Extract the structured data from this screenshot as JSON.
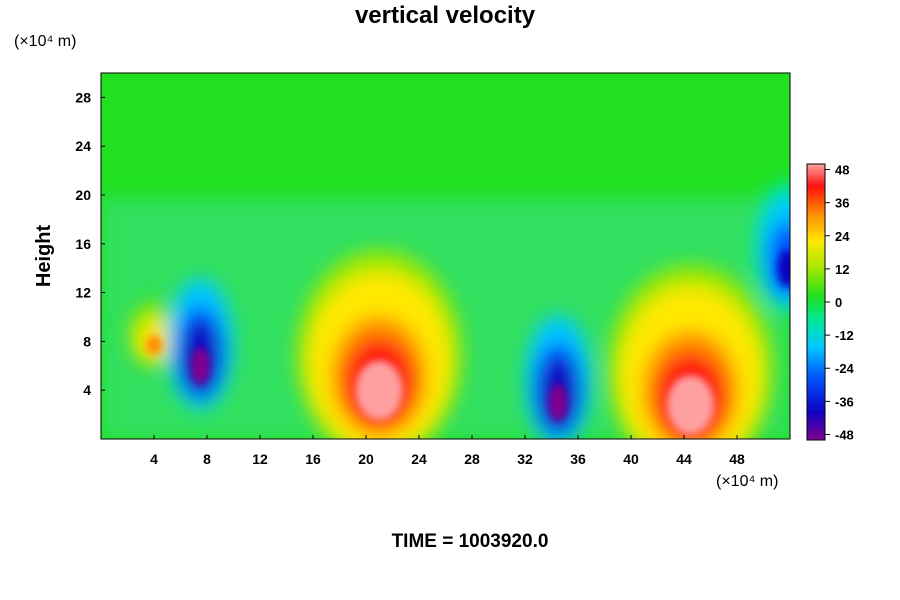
{
  "chart_data": {
    "type": "heatmap",
    "title": "vertical velocity",
    "ylabel": "Height",
    "x_unit_label": "(×10⁴ m)",
    "y_unit_label": "(×10⁴ m)",
    "xlim": [
      0,
      52
    ],
    "ylim": [
      0,
      30
    ],
    "x_ticks": [
      "4",
      "8",
      "12",
      "16",
      "20",
      "24",
      "28",
      "32",
      "36",
      "40",
      "44",
      "48"
    ],
    "y_ticks": [
      "4",
      "8",
      "12",
      "16",
      "20",
      "24",
      "28"
    ],
    "colorbar": {
      "range": [
        -50,
        50
      ],
      "ticks": [
        "48",
        "36",
        "24",
        "12",
        "0",
        "-12",
        "-24",
        "-36",
        "-48"
      ]
    },
    "features": [
      {
        "kind": "updraft",
        "x": 21,
        "y": 4,
        "peak": 48
      },
      {
        "kind": "updraft",
        "x": 44.5,
        "y": 2.8,
        "peak": 46
      },
      {
        "kind": "updraft",
        "x": 4,
        "y": 7.7,
        "peak": 30
      },
      {
        "kind": "downdraft",
        "x": 7.5,
        "y": 6,
        "peak": -50
      },
      {
        "kind": "downdraft",
        "x": 34.5,
        "y": 3,
        "peak": -50
      },
      {
        "kind": "downdraft",
        "x": 51.8,
        "y": 14,
        "peak": -30
      }
    ]
  },
  "footer": {
    "time_label": "TIME = 1003920.0"
  }
}
